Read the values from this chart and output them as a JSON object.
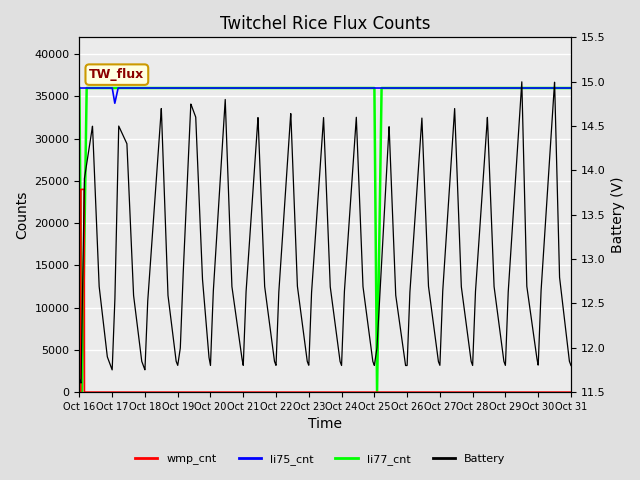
{
  "title": "Twitchel Rice Flux Counts",
  "xlabel": "Time",
  "ylabel_left": "Counts",
  "ylabel_right": "Battery (V)",
  "xlim": [
    0,
    15
  ],
  "ylim_left": [
    0,
    42000
  ],
  "ylim_right": [
    11.5,
    15.5
  ],
  "yticks_left": [
    0,
    5000,
    10000,
    15000,
    20000,
    25000,
    30000,
    35000,
    40000
  ],
  "yticks_right": [
    11.5,
    12.0,
    12.5,
    13.0,
    13.5,
    14.0,
    14.5,
    15.0,
    15.5
  ],
  "xtick_labels": [
    "Oct 16",
    "Oct 17",
    "Oct 18",
    "Oct 19",
    "Oct 20",
    "Oct 21",
    "Oct 22",
    "Oct 23",
    "Oct 24",
    "Oct 25",
    "Oct 26",
    "Oct 27",
    "Oct 28",
    "Oct 29",
    "Oct 30",
    "Oct 31"
  ],
  "bg_color": "#e0e0e0",
  "plot_bg_color": "#ebebeb",
  "title_fontsize": 12,
  "label_fontsize": 10,
  "tick_fontsize": 8,
  "annotation_text": "TW_flux",
  "wmp_color": "#ff0000",
  "li75_color": "#0000ff",
  "li77_color": "#00ff00",
  "battery_color": "#000000",
  "battery_pts_x": [
    0,
    0.05,
    0.15,
    0.4,
    0.6,
    0.85,
    1.0,
    1.08,
    1.2,
    1.45,
    1.65,
    1.9,
    2.0,
    2.08,
    2.5,
    2.7,
    2.95,
    3.0,
    3.08,
    3.15,
    3.4,
    3.55,
    3.75,
    3.95,
    4.0,
    4.08,
    4.45,
    4.65,
    4.95,
    5.0,
    5.08,
    5.45,
    5.65,
    5.95,
    6.0,
    6.08,
    6.45,
    6.65,
    6.95,
    7.0,
    7.08,
    7.45,
    7.65,
    7.95,
    8.0,
    8.08,
    8.45,
    8.65,
    8.95,
    9.0,
    9.08,
    9.45,
    9.65,
    9.95,
    10.0,
    10.08,
    10.45,
    10.65,
    10.95,
    11.0,
    11.08,
    11.45,
    11.65,
    11.95,
    12.0,
    12.08,
    12.45,
    12.65,
    12.95,
    13.0,
    13.08,
    13.5,
    13.65,
    13.95,
    14.0,
    14.08,
    14.5,
    14.65,
    14.95,
    15.0
  ],
  "battery_v_pts": [
    11.65,
    11.6,
    13.9,
    14.5,
    12.7,
    11.9,
    11.75,
    12.5,
    14.5,
    14.3,
    12.6,
    11.85,
    11.75,
    12.5,
    14.7,
    12.6,
    11.85,
    11.8,
    12.0,
    12.7,
    14.75,
    14.6,
    12.8,
    11.9,
    11.8,
    12.6,
    14.8,
    12.7,
    11.9,
    11.8,
    12.6,
    14.6,
    12.7,
    11.85,
    11.8,
    12.6,
    14.65,
    12.7,
    11.85,
    11.8,
    12.6,
    14.6,
    12.7,
    11.85,
    11.8,
    12.6,
    14.6,
    12.7,
    11.85,
    11.8,
    12.0,
    14.5,
    12.6,
    11.8,
    11.8,
    12.6,
    14.6,
    12.7,
    11.85,
    11.8,
    12.6,
    14.7,
    12.7,
    11.85,
    11.8,
    12.6,
    14.6,
    12.7,
    11.85,
    11.8,
    12.6,
    15.0,
    12.7,
    11.9,
    11.8,
    12.6,
    15.0,
    12.8,
    11.85,
    11.8
  ]
}
